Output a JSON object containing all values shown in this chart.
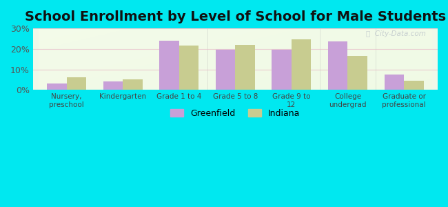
{
  "title": "School Enrollment by Level of School for Male Students",
  "categories": [
    "Nursery,\npreschool",
    "Kindergarten",
    "Grade 1 to 4",
    "Grade 5 to 8",
    "Grade 9 to\n12",
    "College\nundergrad",
    "Graduate or\nprofessional"
  ],
  "greenfield_values": [
    3.0,
    4.0,
    24.0,
    19.5,
    19.5,
    23.5,
    7.5
  ],
  "indiana_values": [
    6.0,
    5.0,
    21.5,
    22.0,
    24.5,
    16.5,
    4.5
  ],
  "greenfield_color": "#c8a0d8",
  "indiana_color": "#c8cc90",
  "ylim": [
    0,
    30
  ],
  "yticks": [
    0,
    10,
    20,
    30
  ],
  "ytick_labels": [
    "0%",
    "10%",
    "20%",
    "30%"
  ],
  "background_color": "#00e8f0",
  "legend_labels": [
    "Greenfield",
    "Indiana"
  ],
  "title_fontsize": 14,
  "bar_width": 0.35,
  "grid_color": "#e8b8c8",
  "watermark_color": "#c0c8cc"
}
